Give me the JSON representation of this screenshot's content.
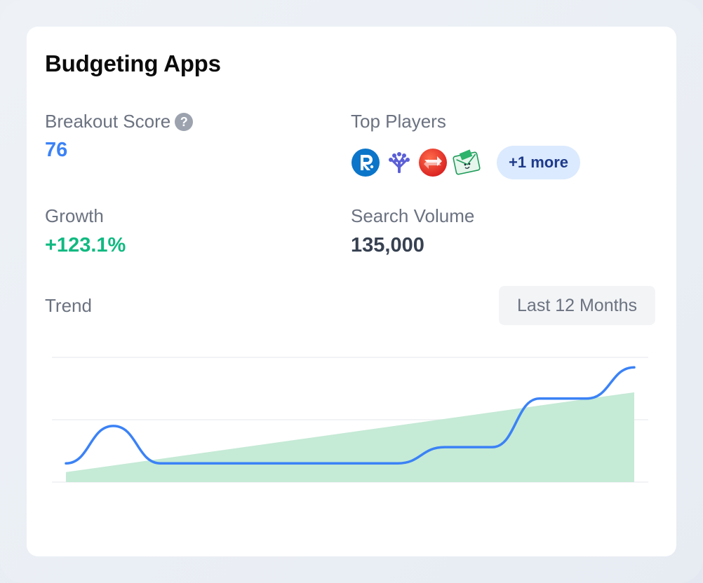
{
  "card": {
    "title": "Budgeting Apps",
    "breakout_score": {
      "label": "Breakout Score",
      "help_glyph": "?",
      "value": "76",
      "color": "#3b82f6"
    },
    "top_players": {
      "label": "Top Players",
      "logos": [
        "rocket-money-logo",
        "ynab-logo",
        "exchange-logo",
        "goodbudget-logo"
      ],
      "more_label": "+1 more"
    },
    "growth": {
      "label": "Growth",
      "value": "+123.1%",
      "color": "#10b981"
    },
    "search_volume": {
      "label": "Search Volume",
      "value": "135,000",
      "color": "#374151"
    },
    "trend": {
      "label": "Trend",
      "range_label": "Last 12 Months"
    }
  },
  "chart_data": {
    "type": "line",
    "title": "",
    "xlabel": "",
    "ylabel": "",
    "grid": true,
    "series": [
      {
        "values": [
          15,
          45,
          15,
          15,
          15,
          15,
          15,
          15,
          28,
          28,
          67,
          67,
          92
        ],
        "color": "#3b82f6",
        "style": "line"
      },
      {
        "values": [
          8,
          72
        ],
        "color": "#c5ead6",
        "style": "area"
      }
    ],
    "ylim": [
      0,
      100
    ]
  }
}
